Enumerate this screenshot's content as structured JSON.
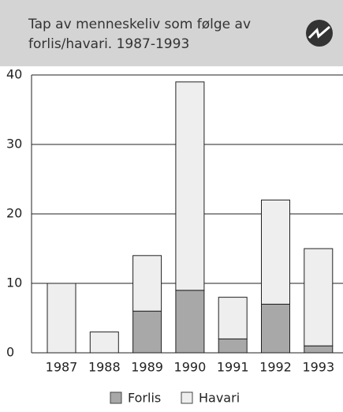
{
  "chart_data": {
    "type": "bar",
    "stacked": true,
    "title": [
      "Tap av menneskeliv som følge av",
      "forlis/havari. 1987-1993"
    ],
    "categories": [
      "1987",
      "1988",
      "1989",
      "1990",
      "1991",
      "1992",
      "1993"
    ],
    "series": [
      {
        "name": "Forlis",
        "color": "#a8a8a8",
        "values": [
          0,
          0,
          6,
          9,
          2,
          7,
          1
        ]
      },
      {
        "name": "Havari",
        "color": "#eeeeee",
        "values": [
          10,
          3,
          8,
          30,
          6,
          15,
          14
        ]
      }
    ],
    "ylim": [
      0,
      40
    ],
    "yticks": [
      0,
      10,
      20,
      30,
      40
    ],
    "grid": true
  }
}
